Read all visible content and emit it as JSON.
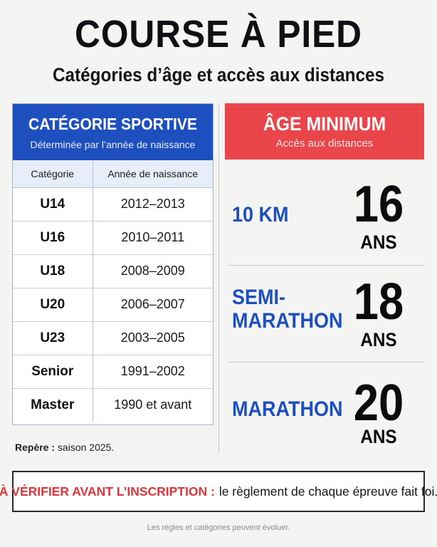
{
  "title": "COURSE À PIED",
  "subtitle": "Catégories d’âge et accès aux distances",
  "categories_panel": {
    "heading": "CATÉGORIE SPORTIVE",
    "subheading": "Déterminée par l’année de naissance",
    "col_headers": [
      "Catégorie",
      "Année de naissance"
    ],
    "rows": [
      {
        "category": "U14",
        "years": "2012–2013"
      },
      {
        "category": "U16",
        "years": "2010–2011"
      },
      {
        "category": "U18",
        "years": "2008–2009"
      },
      {
        "category": "U20",
        "years": "2006–2007"
      },
      {
        "category": "U23",
        "years": "2003–2005"
      },
      {
        "category": "Senior",
        "years": "1991–2002"
      },
      {
        "category": "Master",
        "years": "1990 et avant"
      }
    ],
    "note_label": "Repère :",
    "note_text": "saison 2025."
  },
  "age_panel": {
    "heading": "ÂGE MINIMUM",
    "subheading": "Accès aux distances",
    "distances": [
      {
        "line1": "10 KM",
        "line2": "",
        "age": "16",
        "unit": "ANS"
      },
      {
        "line1": "SEMI-",
        "line2": "MARATHON",
        "age": "18",
        "unit": "ANS"
      },
      {
        "line1": "MARATHON",
        "line2": "",
        "age": "20",
        "unit": "ANS"
      }
    ]
  },
  "warning": {
    "label": "À VÉRIFIER AVANT L’INSCRIPTION :",
    "text": "le règlement de chaque épreuve fait foi."
  },
  "footer": "Les règles et catégories peuvent évoluer.",
  "colors": {
    "blue": "#1e4fbf",
    "red": "#e9454a",
    "background": "#f4f4f2"
  }
}
